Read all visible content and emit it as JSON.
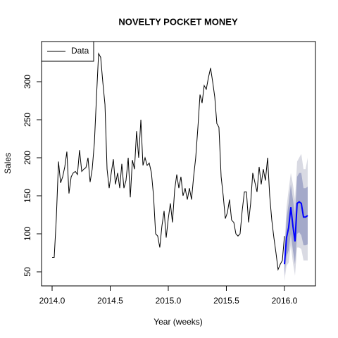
{
  "chart_data": {
    "type": "line",
    "title": "NOVELTY POCKET MONEY",
    "x_label": "Year (weeks)",
    "y_label": "Sales",
    "xlim": [
      2013.909,
      2016.267
    ],
    "ylim": [
      31.5,
      352.8
    ],
    "xticks": [
      {
        "value": 2014,
        "label": "2014.0"
      },
      2014.5,
      {
        "value": 2015,
        "label": "2015.0"
      },
      2015.5,
      {
        "value": 2016,
        "label": "2016.0"
      }
    ],
    "yticks": [
      50,
      100,
      150,
      200,
      250,
      300
    ],
    "legend": "top-left",
    "series": [
      {
        "name": "Data",
        "color": "#000000",
        "x": [
          2014.0,
          2014.018,
          2014.036,
          2014.055,
          2014.073,
          2014.091,
          2014.109,
          2014.127,
          2014.145,
          2014.164,
          2014.182,
          2014.2,
          2014.218,
          2014.236,
          2014.255,
          2014.273,
          2014.291,
          2014.309,
          2014.327,
          2014.345,
          2014.364,
          2014.382,
          2014.4,
          2014.418,
          2014.436,
          2014.455,
          2014.473,
          2014.491,
          2014.509,
          2014.527,
          2014.545,
          2014.564,
          2014.582,
          2014.6,
          2014.618,
          2014.636,
          2014.655,
          2014.673,
          2014.691,
          2014.709,
          2014.727,
          2014.745,
          2014.764,
          2014.782,
          2014.8,
          2014.818,
          2014.836,
          2014.855,
          2014.873,
          2014.891,
          2014.909,
          2014.927,
          2014.945,
          2014.964,
          2014.982,
          2015.0,
          2015.018,
          2015.036,
          2015.055,
          2015.073,
          2015.091,
          2015.109,
          2015.127,
          2015.145,
          2015.164,
          2015.182,
          2015.2,
          2015.218,
          2015.236,
          2015.255,
          2015.273,
          2015.291,
          2015.309,
          2015.327,
          2015.345,
          2015.364,
          2015.382,
          2015.4,
          2015.418,
          2015.436,
          2015.455,
          2015.473,
          2015.491,
          2015.509,
          2015.527,
          2015.545,
          2015.564,
          2015.582,
          2015.6,
          2015.618,
          2015.636,
          2015.655,
          2015.673,
          2015.691,
          2015.709,
          2015.727,
          2015.745,
          2015.764,
          2015.782,
          2015.8,
          2015.818,
          2015.836,
          2015.855,
          2015.873,
          2015.891,
          2015.909,
          2015.927,
          2015.945,
          2015.964,
          2015.982,
          2016.0
        ],
        "values": [
          69,
          69,
          120,
          195,
          167,
          175,
          188,
          208,
          153,
          175,
          180,
          182,
          178,
          210,
          182,
          185,
          187,
          200,
          168,
          185,
          220,
          280,
          337,
          332,
          300,
          270,
          185,
          160,
          180,
          198,
          165,
          180,
          160,
          192,
          160,
          170,
          200,
          148,
          197,
          185,
          235,
          200,
          250,
          190,
          200,
          190,
          193,
          180,
          150,
          100,
          97,
          82,
          110,
          130,
          95,
          120,
          140,
          115,
          158,
          178,
          160,
          175,
          150,
          160,
          145,
          160,
          145,
          175,
          200,
          240,
          283,
          272,
          295,
          290,
          305,
          318,
          300,
          280,
          245,
          240,
          175,
          150,
          120,
          128,
          145,
          118,
          115,
          100,
          97,
          100,
          130,
          155,
          155,
          115,
          140,
          180,
          168,
          155,
          188,
          165,
          185,
          170,
          200,
          150,
          118,
          95,
          75,
          53,
          60,
          65,
          97
        ]
      }
    ],
    "forecast": {
      "color": "#0000ff",
      "color80": "#a4a9c9",
      "color95": "#d9dae3",
      "x": [
        2016.0,
        2016.018,
        2016.036,
        2016.055,
        2016.073,
        2016.091,
        2016.109,
        2016.127,
        2016.145,
        2016.164,
        2016.182,
        2016.2
      ],
      "values": [
        60,
        95,
        108,
        135,
        110,
        90,
        140,
        142,
        140,
        122,
        122,
        124
      ],
      "lower80": [
        45,
        70,
        78,
        100,
        78,
        60,
        100,
        102,
        98,
        85,
        85,
        86
      ],
      "upper80": [
        75,
        120,
        140,
        165,
        145,
        125,
        175,
        180,
        180,
        160,
        160,
        162
      ],
      "lower95": [
        38,
        58,
        62,
        85,
        62,
        45,
        82,
        82,
        80,
        65,
        65,
        65
      ],
      "upper95": [
        82,
        135,
        158,
        180,
        165,
        145,
        195,
        200,
        205,
        185,
        185,
        200
      ]
    }
  }
}
